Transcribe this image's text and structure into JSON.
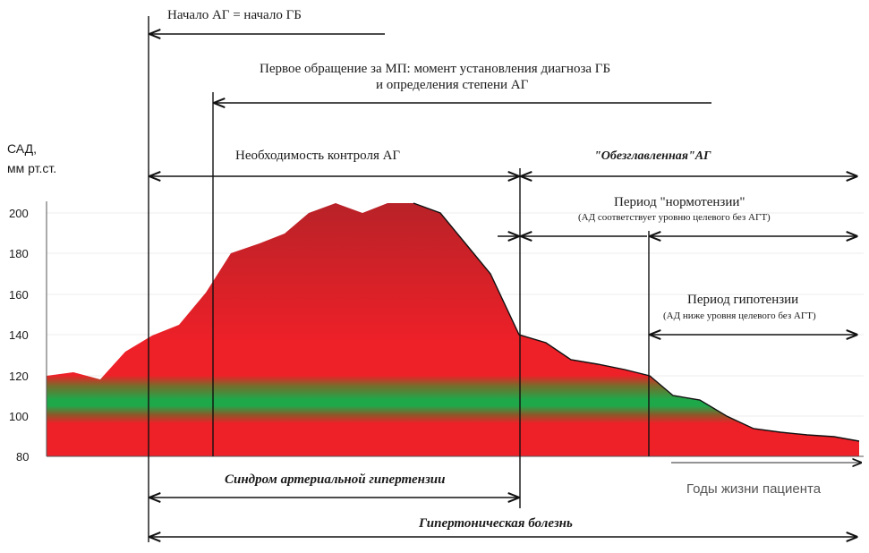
{
  "colors": {
    "area_red": "#ee2028",
    "area_dark_red": "#b82228",
    "normal_band_green": "#1fa84a",
    "line": "#111111",
    "grid": "#e8e8e8"
  },
  "y_axis": {
    "label_line1": "САД,",
    "label_line2": "мм рт.ст.",
    "ticks": [
      "200",
      "180",
      "160",
      "140",
      "120",
      "100",
      "80"
    ],
    "range": [
      80,
      210
    ]
  },
  "x_axis": {
    "label": "Годы жизни пациента"
  },
  "annotations": {
    "onset": "Начало АГ = начало ГБ",
    "first_visit_line1": "Первое обращение за МП: момент установления диагноза ГБ",
    "first_visit_line2": "и определения степени АГ",
    "control_needed": "Необходимость контроля АГ",
    "decapitated": "\"Обезглавленная\"АГ",
    "normotension_title": "Период \"нормотензии\"",
    "normotension_note": "(АД соответствует уровню целевого без АГТ)",
    "hypotension_title": "Период гипотензии",
    "hypotension_note": "(АД ниже уровня целевого без АГТ)",
    "syndrome": "Синдром артериальной гипертензии",
    "disease": "Гипертоническая болезнь"
  },
  "sbp_curve": {
    "description_values_mmHg": [
      119,
      121,
      117,
      131,
      139,
      144,
      160,
      180,
      185,
      190,
      200,
      205,
      200,
      205,
      205,
      200,
      185,
      170,
      155,
      139,
      135,
      127,
      125,
      122,
      119,
      109,
      108,
      99,
      93,
      91,
      90,
      89,
      88
    ]
  }
}
